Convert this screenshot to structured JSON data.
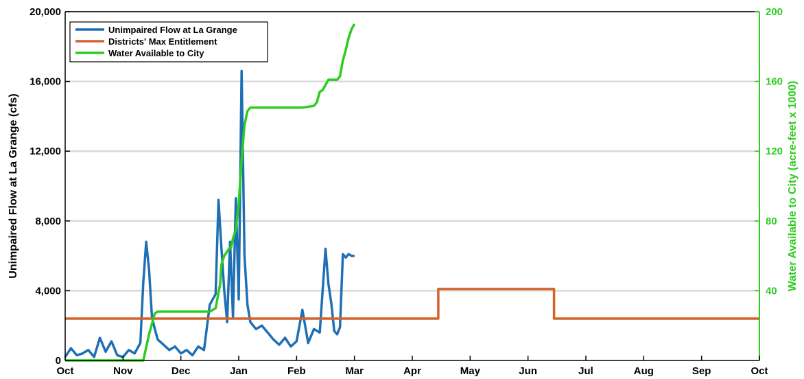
{
  "chart_data": {
    "type": "line",
    "ylabel": "Unimpaired Flow at La Grange (cfs)",
    "y2label": "Water Available to City (acre-feet x 1000)",
    "xlabel": "",
    "x_tick_labels": [
      "Oct",
      "Nov",
      "Dec",
      "Jan",
      "Feb",
      "Mar",
      "Apr",
      "May",
      "Jun",
      "Jul",
      "Aug",
      "Sep",
      "Oct"
    ],
    "ylim": [
      0,
      20000
    ],
    "y_ticks": [
      "0",
      "4,000",
      "8,000",
      "12,000",
      "16,000",
      "20,000"
    ],
    "y2lim": [
      0,
      200
    ],
    "y2_ticks": [
      "40",
      "80",
      "120",
      "160",
      "200"
    ],
    "grid": "horizontal",
    "legend_position": "top-left",
    "colors": {
      "flow": "#1f6fb5",
      "entitlement": "#d4622a",
      "city": "#2ecc1f",
      "right_axis": "#2ecc1f",
      "grid": "#d9d9d9"
    },
    "series": [
      {
        "name": "Unimpaired Flow at La Grange",
        "axis": "left",
        "x_month_index": [
          0,
          0.1,
          0.2,
          0.3,
          0.4,
          0.5,
          0.6,
          0.7,
          0.8,
          0.9,
          1.0,
          1.1,
          1.2,
          1.3,
          1.35,
          1.4,
          1.45,
          1.5,
          1.55,
          1.6,
          1.7,
          1.8,
          1.9,
          2.0,
          2.1,
          2.2,
          2.3,
          2.4,
          2.5,
          2.6,
          2.65,
          2.7,
          2.75,
          2.8,
          2.85,
          2.9,
          2.95,
          3.0,
          3.05,
          3.1,
          3.15,
          3.2,
          3.3,
          3.4,
          3.5,
          3.6,
          3.7,
          3.8,
          3.9,
          4.0,
          4.1,
          4.2,
          4.3,
          4.4,
          4.5,
          4.55,
          4.6,
          4.65,
          4.7,
          4.75,
          4.8,
          4.85,
          4.9,
          4.95,
          5.0
        ],
        "values": [
          200,
          700,
          300,
          400,
          600,
          200,
          1300,
          500,
          1100,
          300,
          200,
          600,
          400,
          1000,
          4500,
          6800,
          5200,
          2500,
          1800,
          1200,
          900,
          600,
          800,
          400,
          600,
          300,
          800,
          600,
          3200,
          3800,
          9200,
          6500,
          4000,
          2200,
          6800,
          2500,
          9300,
          3500,
          16600,
          6000,
          3200,
          2200,
          1800,
          2000,
          1600,
          1200,
          900,
          1300,
          800,
          1100,
          2900,
          1000,
          1800,
          1600,
          6400,
          4400,
          3300,
          1700,
          1500,
          1900,
          6100,
          5900,
          6100,
          6000,
          6000
        ]
      },
      {
        "name": "Districts' Max Entitlement",
        "axis": "left",
        "x_month_index": [
          0,
          6.45,
          6.45,
          8.45,
          8.45,
          12
        ],
        "values": [
          2400,
          2400,
          4100,
          4100,
          2400,
          2400
        ]
      },
      {
        "name": "Water Available to City",
        "axis": "right",
        "x_month_index": [
          0,
          1.35,
          1.45,
          1.55,
          1.6,
          2.5,
          2.6,
          2.68,
          2.7,
          2.75,
          2.85,
          2.87,
          2.9,
          2.95,
          3.0,
          3.05,
          3.1,
          3.15,
          3.2,
          3.3,
          3.5,
          3.7,
          3.9,
          4.1,
          4.3,
          4.35,
          4.4,
          4.45,
          4.5,
          4.55,
          4.6,
          4.7,
          4.75,
          4.8,
          4.85,
          4.9,
          4.95,
          5.0
        ],
        "values": [
          0,
          0,
          15,
          27,
          28,
          28,
          30,
          44,
          55,
          60,
          65,
          65,
          70,
          75,
          90,
          115,
          135,
          143,
          145,
          145,
          145,
          145,
          145,
          145,
          146,
          148,
          154,
          155,
          158,
          161,
          161,
          161,
          163,
          172,
          178,
          185,
          190,
          193
        ]
      }
    ]
  }
}
